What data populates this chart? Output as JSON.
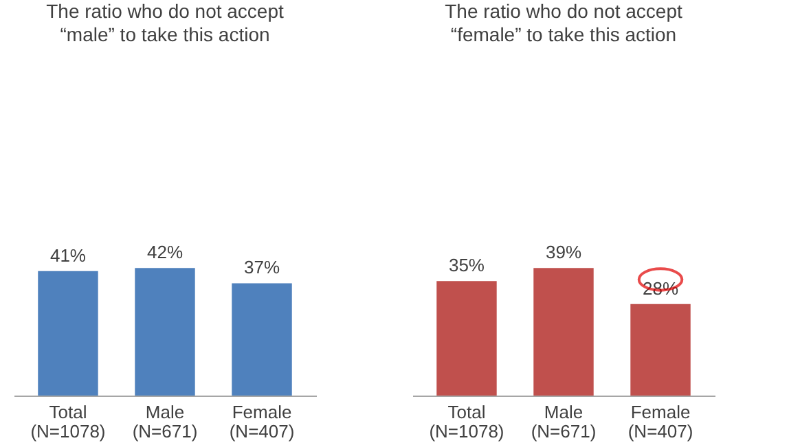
{
  "chart_data": [
    {
      "type": "bar",
      "title": [
        "The ratio who do not accept",
        "“male” to take this action"
      ],
      "categories": [
        "Total\n(N=1078)",
        "Male\n(N=671)",
        "Female\n(N=407)"
      ],
      "values": [
        41,
        42,
        37
      ],
      "color": "#4f81bd",
      "value_labels": [
        "41%",
        "42%",
        "37%"
      ]
    },
    {
      "type": "bar",
      "title": [
        "The ratio who do not accept",
        "“female” to take this action"
      ],
      "categories": [
        "Total\n(N=1078)",
        "Male\n(N=671)",
        "Female\n(N=407)"
      ],
      "values": [
        35,
        39,
        28
      ],
      "color": "#c0504d",
      "value_labels": [
        "35%",
        "39%",
        null
      ],
      "annotations": [
        {
          "text": "28%",
          "x": "Female\n(N=407)",
          "y": 28
        }
      ]
    }
  ]
}
